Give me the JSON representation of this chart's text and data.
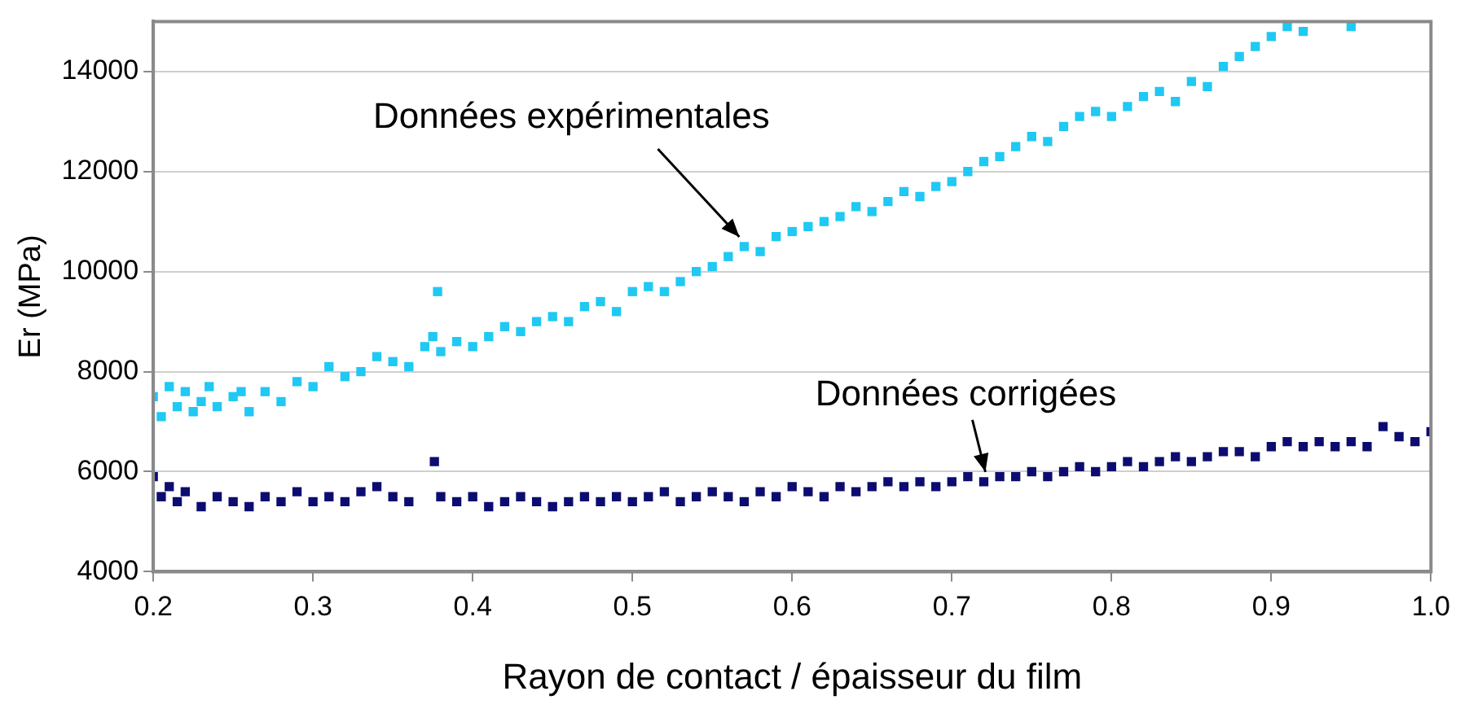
{
  "chart_data": {
    "type": "scatter",
    "xlabel": "Rayon de contact / épaisseur du film",
    "ylabel": "Er (MPa)",
    "xlim": [
      0.2,
      1.0
    ],
    "xticks": [
      0.2,
      0.3,
      0.4,
      0.5,
      0.6,
      0.7,
      0.8,
      0.9,
      {
        "value": 1.0,
        "label": "1.0"
      }
    ],
    "ylim": [
      4000,
      15000
    ],
    "yticks": [
      4000,
      6000,
      8000,
      10000,
      12000,
      14000
    ],
    "grid": "y",
    "legend": false,
    "marker": "square",
    "annotations": [
      {
        "text": "Données expérimentales",
        "x": 0.57,
        "y": 10500
      },
      {
        "text": "Données corrigées",
        "x": 0.72,
        "y": 5800
      }
    ],
    "series": [
      {
        "color": "#20c8f4",
        "x": [
          0.2,
          0.205,
          0.21,
          0.215,
          0.22,
          0.225,
          0.23,
          0.235,
          0.24,
          0.25,
          0.255,
          0.26,
          0.27,
          0.28,
          0.29,
          0.3,
          0.31,
          0.32,
          0.33,
          0.34,
          0.35,
          0.36,
          0.37,
          0.375,
          0.378,
          0.38,
          0.39,
          0.4,
          0.41,
          0.42,
          0.43,
          0.44,
          0.45,
          0.46,
          0.47,
          0.48,
          0.49,
          0.5,
          0.51,
          0.52,
          0.53,
          0.54,
          0.55,
          0.56,
          0.57,
          0.58,
          0.59,
          0.6,
          0.61,
          0.62,
          0.63,
          0.64,
          0.65,
          0.66,
          0.67,
          0.68,
          0.69,
          0.7,
          0.71,
          0.72,
          0.73,
          0.74,
          0.75,
          0.76,
          0.77,
          0.78,
          0.79,
          0.8,
          0.81,
          0.82,
          0.83,
          0.84,
          0.85,
          0.86,
          0.87,
          0.88,
          0.89,
          0.9,
          0.91,
          0.92,
          0.95
        ],
        "values": [
          7500,
          7100,
          7700,
          7300,
          7600,
          7200,
          7400,
          7700,
          7300,
          7500,
          7600,
          7200,
          7600,
          7400,
          7800,
          7700,
          8100,
          7900,
          8000,
          8300,
          8200,
          8100,
          8500,
          8700,
          9600,
          8400,
          8600,
          8500,
          8700,
          8900,
          8800,
          9000,
          9100,
          9000,
          9300,
          9400,
          9200,
          9600,
          9700,
          9600,
          9800,
          10000,
          10100,
          10300,
          10500,
          10400,
          10700,
          10800,
          10900,
          11000,
          11100,
          11300,
          11200,
          11400,
          11600,
          11500,
          11700,
          11800,
          12000,
          12200,
          12300,
          12500,
          12700,
          12600,
          12900,
          13100,
          13200,
          13100,
          13300,
          13500,
          13600,
          13400,
          13800,
          13700,
          14100,
          14300,
          14500,
          14700,
          14900,
          14800,
          14900
        ]
      },
      {
        "color": "#0c0c70",
        "x": [
          0.2,
          0.205,
          0.21,
          0.215,
          0.22,
          0.23,
          0.24,
          0.25,
          0.26,
          0.27,
          0.28,
          0.29,
          0.3,
          0.31,
          0.32,
          0.33,
          0.34,
          0.35,
          0.36,
          0.376,
          0.38,
          0.39,
          0.4,
          0.41,
          0.42,
          0.43,
          0.44,
          0.45,
          0.46,
          0.47,
          0.48,
          0.49,
          0.5,
          0.51,
          0.52,
          0.53,
          0.54,
          0.55,
          0.56,
          0.57,
          0.58,
          0.59,
          0.6,
          0.61,
          0.62,
          0.63,
          0.64,
          0.65,
          0.66,
          0.67,
          0.68,
          0.69,
          0.7,
          0.71,
          0.72,
          0.73,
          0.74,
          0.75,
          0.76,
          0.77,
          0.78,
          0.79,
          0.8,
          0.81,
          0.82,
          0.83,
          0.84,
          0.85,
          0.86,
          0.87,
          0.88,
          0.89,
          0.9,
          0.91,
          0.92,
          0.93,
          0.94,
          0.95,
          0.96,
          0.97,
          0.98,
          0.99,
          1.0
        ],
        "values": [
          5900,
          5500,
          5700,
          5400,
          5600,
          5300,
          5500,
          5400,
          5300,
          5500,
          5400,
          5600,
          5400,
          5500,
          5400,
          5600,
          5700,
          5500,
          5400,
          6200,
          5500,
          5400,
          5500,
          5300,
          5400,
          5500,
          5400,
          5300,
          5400,
          5500,
          5400,
          5500,
          5400,
          5500,
          5600,
          5400,
          5500,
          5600,
          5500,
          5400,
          5600,
          5500,
          5700,
          5600,
          5500,
          5700,
          5600,
          5700,
          5800,
          5700,
          5800,
          5700,
          5800,
          5900,
          5800,
          5900,
          5900,
          6000,
          5900,
          6000,
          6100,
          6000,
          6100,
          6200,
          6100,
          6200,
          6300,
          6200,
          6300,
          6400,
          6400,
          6300,
          6500,
          6600,
          6500,
          6600,
          6500,
          6600,
          6500,
          6900,
          6700,
          6600,
          6800
        ]
      }
    ]
  }
}
